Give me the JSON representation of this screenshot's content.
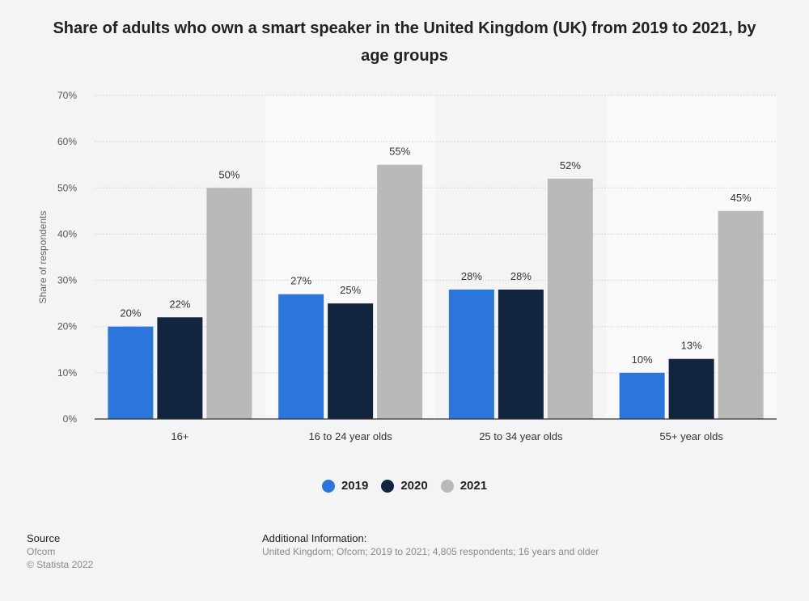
{
  "title": "Share of adults who own a smart speaker in the United Kingdom (UK) from 2019 to 2021, by age groups",
  "colors": {
    "background": "#f4f4f4",
    "plot_band": "#f9f9f9",
    "grid": "#cfcfcf",
    "axis": "#333333"
  },
  "chart_data": {
    "type": "bar",
    "categories": [
      "16+",
      "16 to 24 year olds",
      "25 to 34 year olds",
      "55+ year olds"
    ],
    "series": [
      {
        "name": "2019",
        "values": [
          20,
          27,
          28,
          10
        ],
        "color": "#2a76dd"
      },
      {
        "name": "2020",
        "values": [
          22,
          25,
          28,
          13
        ],
        "color": "#11253f"
      },
      {
        "name": "2021",
        "values": [
          50,
          55,
          52,
          45
        ],
        "color": "#b9b9b9"
      }
    ],
    "ylabel": "Share of respondents",
    "ylim": [
      0,
      70
    ],
    "yticks": [
      0,
      10,
      20,
      30,
      40,
      50,
      60,
      70
    ],
    "ytick_labels": [
      "0%",
      "10%",
      "20%",
      "30%",
      "40%",
      "50%",
      "60%",
      "70%"
    ],
    "value_suffix": "%",
    "grid": true,
    "legend_position": "bottom"
  },
  "source": {
    "heading": "Source",
    "lines": [
      "Ofcom",
      "© Statista 2022"
    ]
  },
  "additional_info": {
    "heading": "Additional Information:",
    "text": "United Kingdom; Ofcom; 2019 to 2021; 4,805 respondents; 16 years and older"
  }
}
